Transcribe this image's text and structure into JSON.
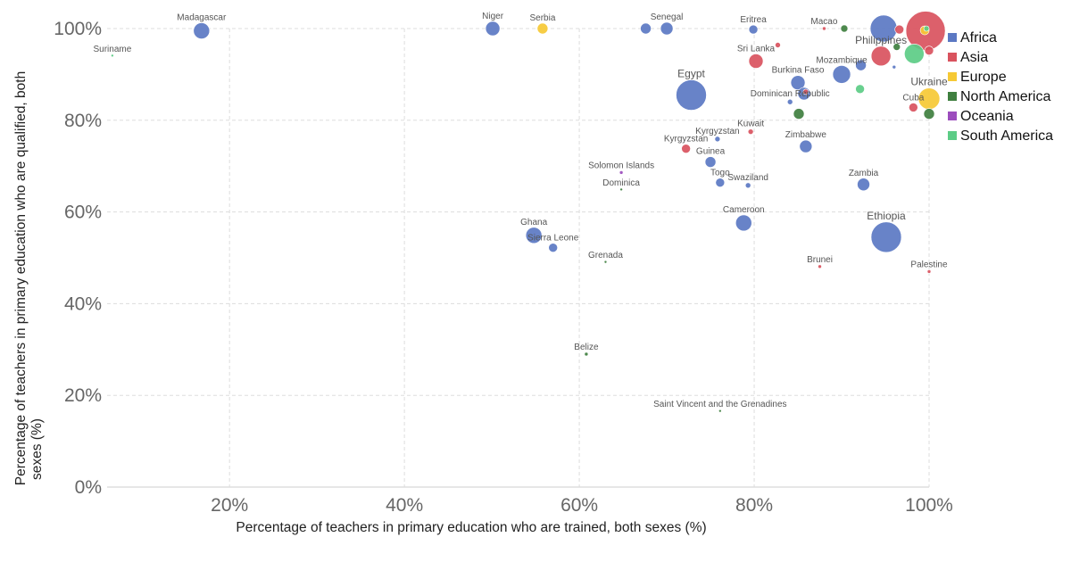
{
  "chart_data": {
    "type": "scatter",
    "xlabel": "Percentage of teachers in primary education who are trained, both sexes (%)",
    "ylabel": [
      "Percentage of teachers in primary education who are qualified, both",
      "sexes (%)"
    ],
    "xlim": [
      6,
      100
    ],
    "ylim": [
      0,
      100
    ],
    "x_ticks": [
      20,
      40,
      60,
      80,
      100
    ],
    "y_ticks": [
      0,
      20,
      40,
      60,
      80,
      100
    ],
    "tick_suffix": "%",
    "grid": true,
    "legend_position": "right",
    "series": [
      {
        "name": "Africa",
        "color": "#5b78c3",
        "points": [
          {
            "label": "Madagascar",
            "x": 16.8,
            "y": 99.5,
            "size": 9
          },
          {
            "label": "Niger",
            "x": 50.1,
            "y": 100,
            "size": 8
          },
          {
            "label": "",
            "x": 67.6,
            "y": 100,
            "size": 6
          },
          {
            "label": "Senegal",
            "x": 70,
            "y": 100,
            "size": 7
          },
          {
            "label": "Eritrea",
            "x": 79.9,
            "y": 99.8,
            "size": 5
          },
          {
            "label": "",
            "x": 94.8,
            "y": 100,
            "size": 15
          },
          {
            "label": "Egypt",
            "x": 72.8,
            "y": 85.5,
            "size": 17
          },
          {
            "label": "Burkina Faso",
            "x": 85,
            "y": 88.2,
            "size": 8
          },
          {
            "label": "",
            "x": 85.7,
            "y": 85.8,
            "size": 7
          },
          {
            "label": "Mozambique",
            "x": 90,
            "y": 90,
            "size": 10
          },
          {
            "label": "",
            "x": 92.2,
            "y": 92,
            "size": 6
          },
          {
            "label": "Dominican Republic",
            "x": 84.1,
            "y": 84,
            "size": 3
          },
          {
            "label": "",
            "x": 96,
            "y": 91.6,
            "size": 2
          },
          {
            "label": "Kyrgyzstan",
            "x": 75.8,
            "y": 75.9,
            "size": 3
          },
          {
            "label": "Zimbabwe",
            "x": 85.9,
            "y": 74.3,
            "size": 7
          },
          {
            "label": "Guinea",
            "x": 75,
            "y": 70.9,
            "size": 6
          },
          {
            "label": "Togo",
            "x": 76.1,
            "y": 66.4,
            "size": 5
          },
          {
            "label": "Swaziland",
            "x": 79.3,
            "y": 65.8,
            "size": 3
          },
          {
            "label": "Zambia",
            "x": 92.5,
            "y": 66,
            "size": 7
          },
          {
            "label": "Cameroon",
            "x": 78.8,
            "y": 57.6,
            "size": 9
          },
          {
            "label": "Ethiopia",
            "x": 95.1,
            "y": 54.5,
            "size": 17
          },
          {
            "label": "Ghana",
            "x": 54.8,
            "y": 54.9,
            "size": 9
          },
          {
            "label": "Sierra Leone",
            "x": 57,
            "y": 52.2,
            "size": 5
          }
        ]
      },
      {
        "name": "Asia",
        "color": "#d9535e",
        "points": [
          {
            "label": "",
            "x": 99.6,
            "y": 99.5,
            "size": 22
          },
          {
            "label": "Macao",
            "x": 88,
            "y": 100,
            "size": 2
          },
          {
            "label": "",
            "x": 96.6,
            "y": 99.8,
            "size": 5
          },
          {
            "label": "Philippines",
            "x": 94.5,
            "y": 94,
            "size": 11
          },
          {
            "label": "Sri Lanka",
            "x": 80.2,
            "y": 92.9,
            "size": 8
          },
          {
            "label": "",
            "x": 82.7,
            "y": 96.4,
            "size": 3
          },
          {
            "label": "",
            "x": 100,
            "y": 95.2,
            "size": 5
          },
          {
            "label": "Cuba",
            "x": 98.2,
            "y": 82.8,
            "size": 5
          },
          {
            "label": "Kuwait",
            "x": 79.6,
            "y": 77.5,
            "size": 3
          },
          {
            "label": "Kyrgyzstan",
            "x": 72.2,
            "y": 73.8,
            "size": 5
          },
          {
            "label": "",
            "x": 85.9,
            "y": 86.2,
            "size": 3
          },
          {
            "label": "Brunei",
            "x": 87.5,
            "y": 48.1,
            "size": 2
          },
          {
            "label": "Palestine",
            "x": 100,
            "y": 47,
            "size": 2
          }
        ]
      },
      {
        "name": "Europe",
        "color": "#f6c935",
        "points": [
          {
            "label": "Serbia",
            "x": 55.8,
            "y": 100,
            "size": 6
          },
          {
            "label": "Ukraine",
            "x": 100,
            "y": 84.7,
            "size": 12
          },
          {
            "label": "",
            "x": 99.5,
            "y": 99.6,
            "size": 5
          }
        ]
      },
      {
        "name": "North America",
        "color": "#3f7f3f",
        "points": [
          {
            "label": "",
            "x": 90.3,
            "y": 100,
            "size": 4
          },
          {
            "label": "",
            "x": 96.3,
            "y": 96,
            "size": 4
          },
          {
            "label": "",
            "x": 85.1,
            "y": 81.4,
            "size": 6
          },
          {
            "label": "",
            "x": 100,
            "y": 81.4,
            "size": 6
          },
          {
            "label": "Dominica",
            "x": 64.8,
            "y": 64.9,
            "size": 1.5
          },
          {
            "label": "Grenada",
            "x": 63,
            "y": 49.1,
            "size": 1.5
          },
          {
            "label": "Belize",
            "x": 60.8,
            "y": 29,
            "size": 2
          },
          {
            "label": "Saint Vincent and the Grenadines",
            "x": 76.1,
            "y": 16.6,
            "size": 1.5
          }
        ]
      },
      {
        "name": "Oceania",
        "color": "#9c4dbd",
        "points": [
          {
            "label": "Solomon Islands",
            "x": 64.8,
            "y": 68.6,
            "size": 2
          }
        ]
      },
      {
        "name": "South America",
        "color": "#5ccc86",
        "points": [
          {
            "label": "Suriname",
            "x": 6.6,
            "y": 94.1,
            "size": 1.5
          },
          {
            "label": "",
            "x": 98.3,
            "y": 94.5,
            "size": 11
          },
          {
            "label": "",
            "x": 92.1,
            "y": 86.8,
            "size": 5
          },
          {
            "label": "",
            "x": 99.7,
            "y": 100,
            "size": 3
          }
        ]
      }
    ]
  }
}
